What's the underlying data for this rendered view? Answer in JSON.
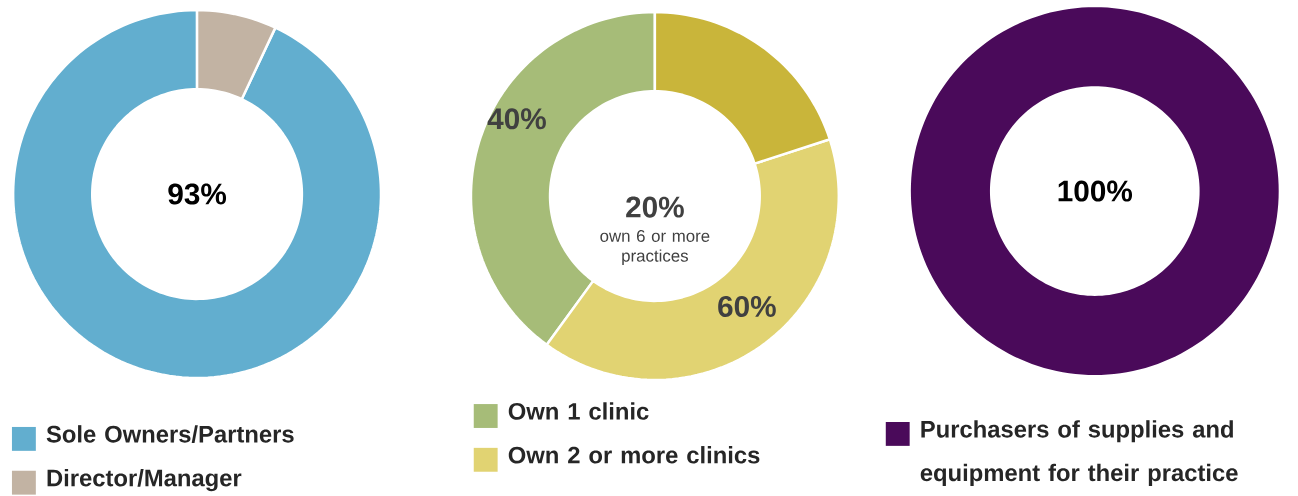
{
  "chart_data": [
    {
      "type": "donut",
      "categories": [
        "Sole Owners/Partners",
        "Director/Manager"
      ],
      "values": [
        93,
        7
      ],
      "colors": [
        "#62aecf",
        "#c2b3a3"
      ],
      "value_labels": [
        "93%",
        null
      ],
      "legend": "bottom"
    },
    {
      "type": "donut",
      "categories": [
        "Own 1 clinic",
        "Own 2 or more clinics",
        null
      ],
      "values": [
        40,
        40,
        20
      ],
      "colors": [
        "#a6bc78",
        "#e1d372",
        "#c9b53a"
      ],
      "annotations": [
        "40%",
        "60%",
        "20%",
        "own 6 or more practices"
      ],
      "legend": "bottom"
    },
    {
      "type": "donut",
      "categories": [
        "Purchasers of supplies and equipment for their practice"
      ],
      "values": [
        100
      ],
      "colors": [
        "#4a0a5a"
      ],
      "value_labels": [
        "100%"
      ],
      "legend": "bottom"
    }
  ]
}
